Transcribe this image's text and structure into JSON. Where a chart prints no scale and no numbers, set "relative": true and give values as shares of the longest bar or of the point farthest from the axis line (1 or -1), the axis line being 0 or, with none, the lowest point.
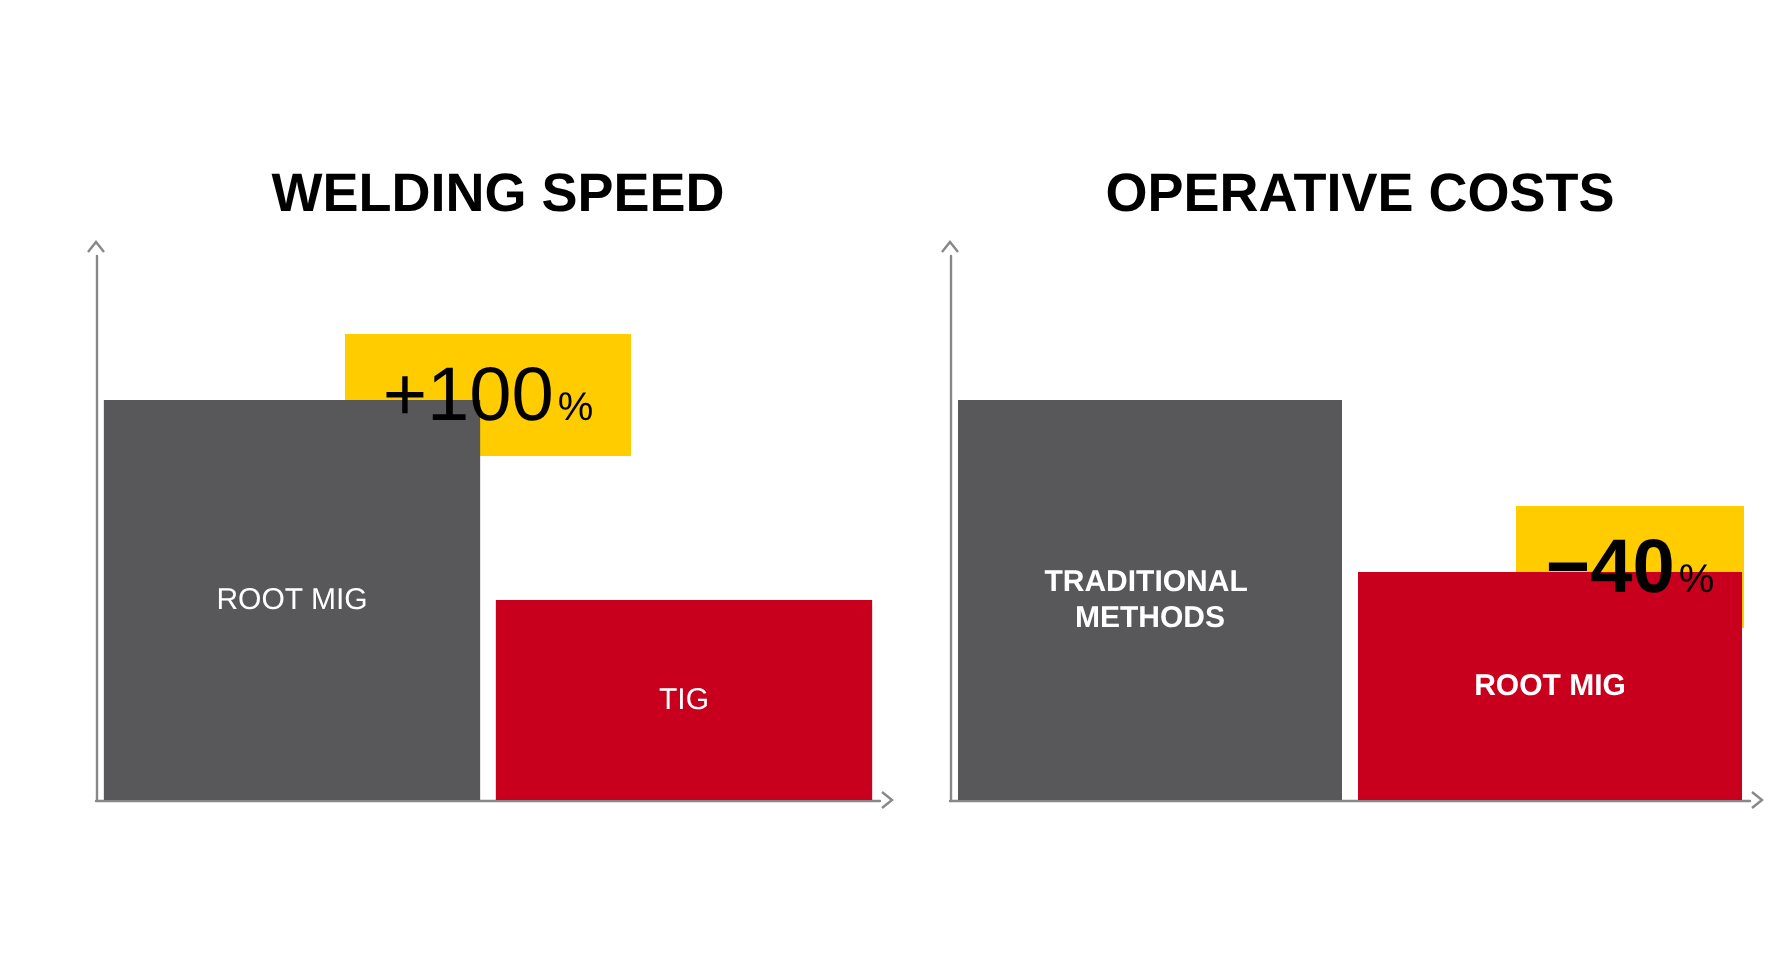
{
  "chart_data": [
    {
      "type": "bar",
      "title": "WELDING SPEED",
      "categories": [
        "ROOT MIG",
        "TIG"
      ],
      "values": [
        1,
        0.5
      ],
      "colors": [
        "#58585a",
        "#c8001e"
      ],
      "relative": true,
      "annotations": [
        {
          "text": "+100%",
          "x": "ROOT MIG",
          "y": 1
        }
      ]
    },
    {
      "type": "bar",
      "title": "OPERATIVE COSTS",
      "categories": [
        "TRADITIONAL METHODS",
        "ROOT MIG"
      ],
      "values": [
        1,
        0.57
      ],
      "colors": [
        "#58585a",
        "#c8001e"
      ],
      "relative": true,
      "annotations": [
        {
          "text": "−40%",
          "x": "ROOT MIG",
          "y": 0.57
        }
      ]
    }
  ]
}
